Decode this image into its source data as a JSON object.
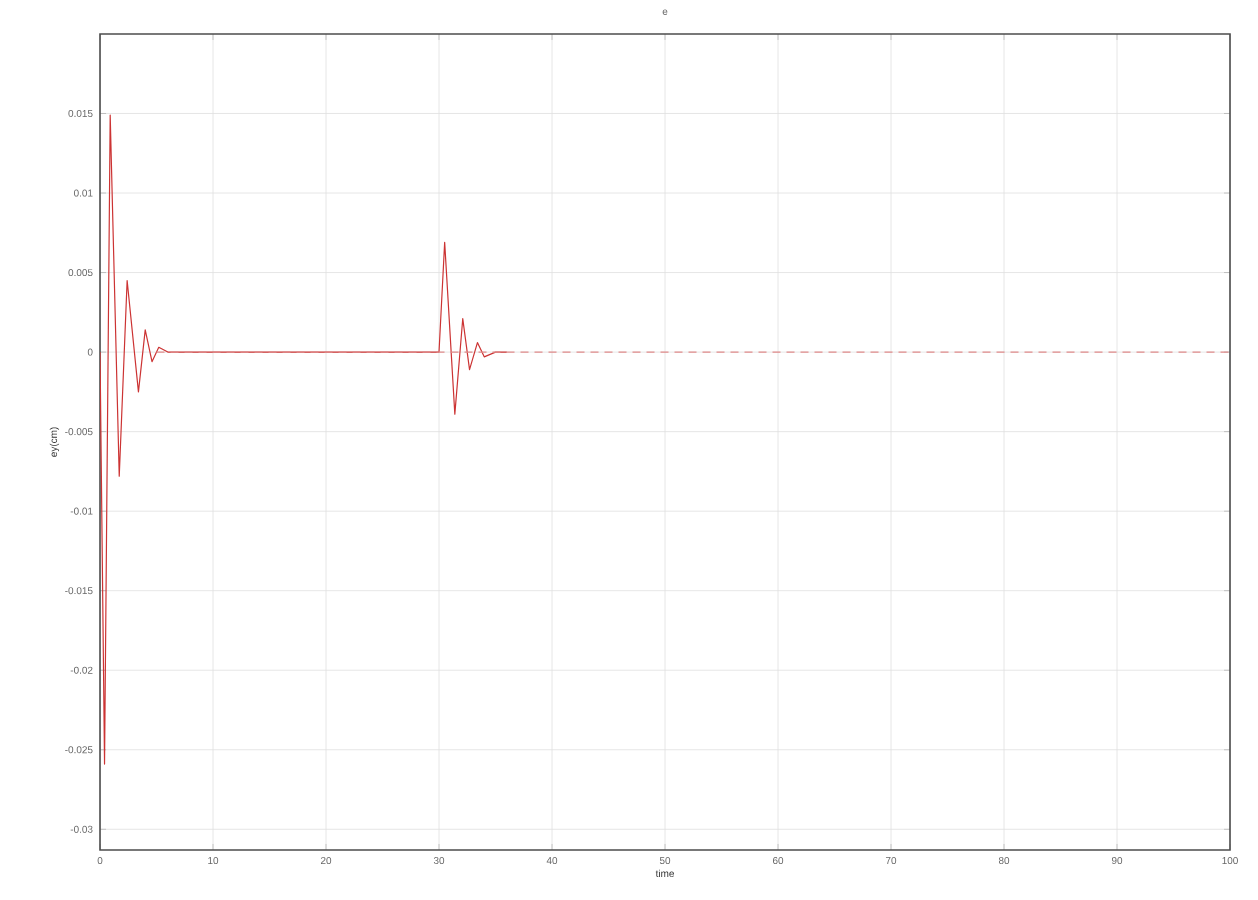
{
  "chart_data": {
    "type": "line",
    "title": "e",
    "xlabel": "time",
    "ylabel": "ey(cm)",
    "xlim": [
      0,
      100
    ],
    "xticks": [
      0,
      10,
      20,
      30,
      40,
      50,
      60,
      70,
      80,
      90,
      100
    ],
    "ylim": [
      -0.0313,
      0.02
    ],
    "yticks": [
      -0.03,
      -0.025,
      -0.02,
      -0.015,
      -0.01,
      -0.005,
      0,
      0.005,
      0.01,
      0.015
    ],
    "grid": true,
    "series": [
      {
        "color": "#cc3333",
        "line_style": "solid",
        "x": [
          0,
          0.4,
          0.9,
          1.7,
          2.4,
          3.4,
          4.0,
          4.6,
          5.2,
          6,
          30,
          30.5,
          31.4,
          32.1,
          32.7,
          33.4,
          34,
          35,
          36
        ],
        "values": [
          0,
          -0.0259,
          0.0149,
          -0.0078,
          0.0045,
          -0.0025,
          0.0014,
          -0.0006,
          0.0003,
          0,
          0,
          0.0069,
          -0.0039,
          0.0021,
          -0.0011,
          0.0006,
          -0.0003,
          0,
          0
        ]
      },
      {
        "color": "#e08a8a",
        "line_style": "dashed",
        "x": [
          5,
          100
        ],
        "values": [
          0,
          0
        ]
      }
    ]
  }
}
